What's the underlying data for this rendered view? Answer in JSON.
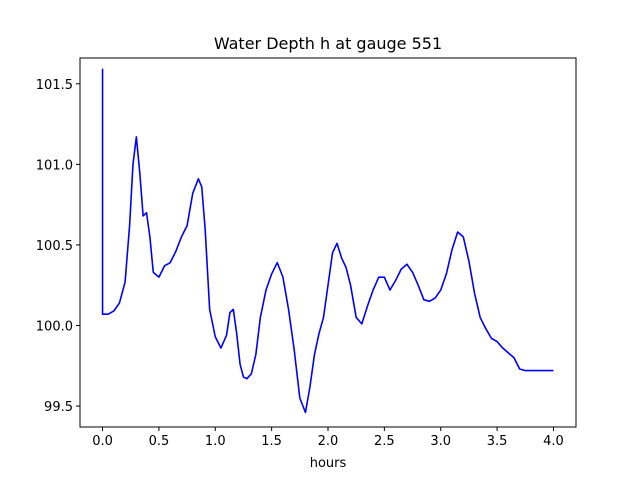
{
  "chart_data": {
    "type": "line",
    "title": "Water Depth h at gauge 551",
    "xlabel": "hours",
    "ylabel": "",
    "xlim": [
      -0.2,
      4.2
    ],
    "ylim": [
      99.37,
      101.66
    ],
    "grid": false,
    "legend": "none",
    "x_ticks": [
      0.0,
      0.5,
      1.0,
      1.5,
      2.0,
      2.5,
      3.0,
      3.5,
      4.0
    ],
    "x_tick_labels": [
      "0.0",
      "0.5",
      "1.0",
      "1.5",
      "2.0",
      "2.5",
      "3.0",
      "3.5",
      "4.0"
    ],
    "y_ticks": [
      99.5,
      100.0,
      100.5,
      101.0,
      101.5
    ],
    "y_tick_labels": [
      "99.5",
      "100.0",
      "100.5",
      "101.0",
      "101.5"
    ],
    "series": [
      {
        "color": "#0000ff",
        "x": [
          0.0,
          0.0,
          0.0,
          0.05,
          0.1,
          0.15,
          0.2,
          0.24,
          0.27,
          0.3,
          0.33,
          0.36,
          0.39,
          0.42,
          0.45,
          0.5,
          0.55,
          0.6,
          0.65,
          0.7,
          0.75,
          0.8,
          0.85,
          0.88,
          0.91,
          0.95,
          1.0,
          1.05,
          1.1,
          1.13,
          1.16,
          1.19,
          1.22,
          1.25,
          1.28,
          1.32,
          1.36,
          1.4,
          1.45,
          1.5,
          1.55,
          1.6,
          1.65,
          1.7,
          1.75,
          1.8,
          1.84,
          1.88,
          1.92,
          1.96,
          2.0,
          2.04,
          2.08,
          2.12,
          2.16,
          2.2,
          2.25,
          2.3,
          2.35,
          2.4,
          2.45,
          2.5,
          2.55,
          2.6,
          2.65,
          2.7,
          2.75,
          2.8,
          2.85,
          2.9,
          2.95,
          3.0,
          3.05,
          3.1,
          3.15,
          3.2,
          3.25,
          3.3,
          3.35,
          3.4,
          3.45,
          3.5,
          3.55,
          3.6,
          3.65,
          3.7,
          3.75,
          3.8,
          3.85,
          3.9,
          3.95,
          4.0
        ],
        "y": [
          100.07,
          101.59,
          100.07,
          100.07,
          100.09,
          100.14,
          100.27,
          100.62,
          101.0,
          101.17,
          100.95,
          100.68,
          100.7,
          100.55,
          100.33,
          100.3,
          100.37,
          100.39,
          100.46,
          100.55,
          100.62,
          100.82,
          100.91,
          100.86,
          100.6,
          100.1,
          99.93,
          99.86,
          99.94,
          100.08,
          100.1,
          99.95,
          99.76,
          99.68,
          99.67,
          99.7,
          99.82,
          100.05,
          100.22,
          100.32,
          100.39,
          100.3,
          100.1,
          99.85,
          99.55,
          99.46,
          99.62,
          99.82,
          99.95,
          100.05,
          100.25,
          100.45,
          100.51,
          100.42,
          100.36,
          100.25,
          100.05,
          100.01,
          100.12,
          100.22,
          100.3,
          100.3,
          100.22,
          100.28,
          100.35,
          100.38,
          100.33,
          100.25,
          100.16,
          100.15,
          100.17,
          100.22,
          100.32,
          100.47,
          100.58,
          100.55,
          100.4,
          100.2,
          100.05,
          99.98,
          99.92,
          99.9,
          99.86,
          99.83,
          99.8,
          99.73,
          99.72,
          99.72,
          99.72,
          99.72,
          99.72,
          99.72
        ]
      }
    ]
  }
}
